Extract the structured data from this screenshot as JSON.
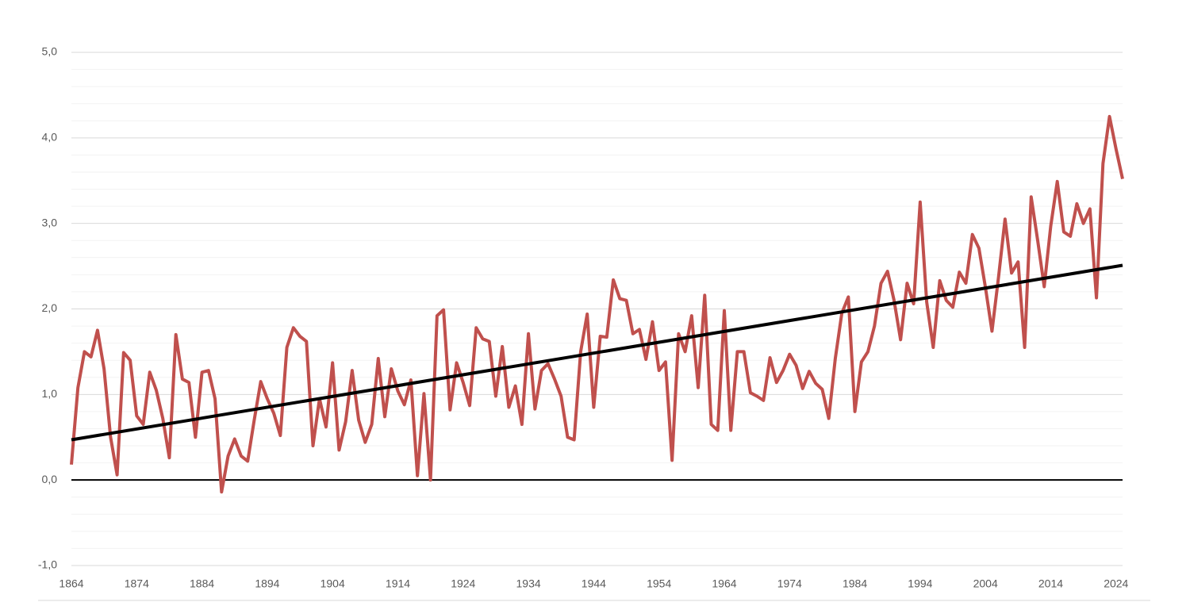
{
  "chart_data": {
    "type": "line",
    "x": [
      1864,
      1865,
      1866,
      1867,
      1868,
      1869,
      1870,
      1871,
      1872,
      1873,
      1874,
      1875,
      1876,
      1877,
      1878,
      1879,
      1880,
      1881,
      1882,
      1883,
      1884,
      1885,
      1886,
      1887,
      1888,
      1889,
      1890,
      1891,
      1892,
      1893,
      1894,
      1895,
      1896,
      1897,
      1898,
      1899,
      1900,
      1901,
      1902,
      1903,
      1904,
      1905,
      1906,
      1907,
      1908,
      1909,
      1910,
      1911,
      1912,
      1913,
      1914,
      1915,
      1916,
      1917,
      1918,
      1919,
      1920,
      1921,
      1922,
      1923,
      1924,
      1925,
      1926,
      1927,
      1928,
      1929,
      1930,
      1931,
      1932,
      1933,
      1934,
      1935,
      1936,
      1937,
      1938,
      1939,
      1940,
      1941,
      1942,
      1943,
      1944,
      1945,
      1946,
      1947,
      1948,
      1949,
      1950,
      1951,
      1952,
      1953,
      1954,
      1955,
      1956,
      1957,
      1958,
      1959,
      1960,
      1961,
      1962,
      1963,
      1964,
      1965,
      1966,
      1967,
      1968,
      1969,
      1970,
      1971,
      1972,
      1973,
      1974,
      1975,
      1976,
      1977,
      1978,
      1979,
      1980,
      1981,
      1982,
      1983,
      1984,
      1985,
      1986,
      1987,
      1988,
      1989,
      1990,
      1991,
      1992,
      1993,
      1994,
      1995,
      1996,
      1997,
      1998,
      1999,
      2000,
      2001,
      2002,
      2003,
      2004,
      2005,
      2006,
      2007,
      2008,
      2009,
      2010,
      2011,
      2012,
      2013,
      2014,
      2015,
      2016,
      2017,
      2018,
      2019,
      2020,
      2021,
      2022,
      2023,
      2024,
      2025
    ],
    "series": [
      {
        "color": "#c0504d",
        "values": [
          0.18,
          1.08,
          1.5,
          1.44,
          1.75,
          1.3,
          0.5,
          0.06,
          1.49,
          1.4,
          0.75,
          0.65,
          1.26,
          1.05,
          0.72,
          0.26,
          1.7,
          1.18,
          1.14,
          0.5,
          1.26,
          1.28,
          0.95,
          -0.14,
          0.28,
          0.48,
          0.28,
          0.22,
          0.7,
          1.15,
          0.95,
          0.78,
          0.52,
          1.55,
          1.78,
          1.68,
          1.62,
          0.4,
          0.95,
          0.62,
          1.37,
          0.35,
          0.68,
          1.28,
          0.7,
          0.44,
          0.65,
          1.42,
          0.74,
          1.3,
          1.04,
          0.88,
          1.17,
          0.05,
          1.01,
          0.0,
          1.92,
          1.99,
          0.82,
          1.37,
          1.14,
          0.87,
          1.78,
          1.65,
          1.62,
          0.98,
          1.56,
          0.85,
          1.1,
          0.65,
          1.71,
          0.83,
          1.28,
          1.36,
          1.18,
          0.98,
          0.5,
          0.47,
          1.5,
          1.94,
          0.85,
          1.68,
          1.67,
          2.34,
          2.12,
          2.1,
          1.71,
          1.76,
          1.41,
          1.85,
          1.28,
          1.38,
          0.23,
          1.71,
          1.5,
          1.92,
          1.08,
          2.16,
          0.65,
          0.58,
          1.98,
          0.58,
          1.5,
          1.5,
          1.02,
          0.98,
          0.93,
          1.43,
          1.14,
          1.28,
          1.47,
          1.34,
          1.07,
          1.27,
          1.13,
          1.06,
          0.72,
          1.42,
          1.95,
          2.14,
          0.8,
          1.38,
          1.5,
          1.8,
          2.3,
          2.44,
          2.1,
          1.64,
          2.3,
          2.06,
          3.25,
          2.08,
          1.55,
          2.33,
          2.1,
          2.02,
          2.43,
          2.3,
          2.87,
          2.71,
          2.25,
          1.74,
          2.37,
          3.05,
          2.42,
          2.55,
          1.55,
          3.31,
          2.8,
          2.26,
          2.97,
          3.49,
          2.9,
          2.85,
          3.23,
          3.0,
          3.17,
          2.13,
          3.7,
          4.25,
          3.87,
          3.52
        ]
      }
    ],
    "trend": {
      "x": [
        1864,
        2025
      ],
      "values": [
        0.47,
        2.51
      ],
      "color": "#000000"
    },
    "xlim": [
      1864,
      2025
    ],
    "xticks": [
      1864,
      1874,
      1884,
      1894,
      1904,
      1914,
      1924,
      1934,
      1944,
      1954,
      1964,
      1974,
      1984,
      1994,
      2004,
      2014,
      2024
    ],
    "ylim": [
      -1,
      5
    ],
    "yticks": [
      {
        "value": -1,
        "label": "-1,0"
      },
      {
        "value": 0,
        "label": "0,0"
      },
      {
        "value": 1,
        "label": "1,0"
      },
      {
        "value": 2,
        "label": "2,0"
      },
      {
        "value": 3,
        "label": "3,0"
      },
      {
        "value": 4,
        "label": "4,0"
      },
      {
        "value": 5,
        "label": "5,0"
      }
    ],
    "yminorticks": [
      -0.8,
      -0.6,
      -0.4,
      -0.2,
      0.2,
      0.4,
      0.6,
      0.8,
      1.2,
      1.4,
      1.6,
      1.8,
      2.2,
      2.4,
      2.6,
      2.8,
      3.2,
      3.4,
      3.6,
      3.8,
      4.2,
      4.4,
      4.6,
      4.8
    ],
    "grid": true
  }
}
